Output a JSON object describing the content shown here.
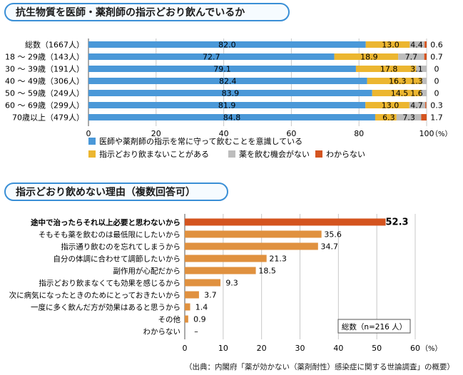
{
  "chart1": {
    "title": "抗生物質を医師・薬剤師の指示どおり飲んでいるか",
    "chart_data": {
      "type": "bar",
      "orientation": "horizontal-stacked",
      "categories": [
        "総数（1667人）",
        "18 ～ 29歳（143人）",
        "30 ～ 39歳（191人）",
        "40 ～ 49歳（306人）",
        "50 ～ 59歳（249人）",
        "60 ～ 69歳（299人）",
        "70歳以上（479人）"
      ],
      "series": [
        {
          "name": "医師や薬剤師の指示を常に守って飲むことを意識している",
          "color": "#4a98d8",
          "values": [
            82.0,
            72.7,
            79.1,
            82.4,
            83.9,
            81.9,
            84.8
          ]
        },
        {
          "name": "指示どおり飲まないことがある",
          "color": "#ecb630",
          "values": [
            13.0,
            18.9,
            17.8,
            16.3,
            14.5,
            13.0,
            6.3
          ]
        },
        {
          "name": "薬を飲む機会がない",
          "color": "#bdbdbd",
          "values": [
            4.4,
            7.7,
            3.1,
            1.3,
            1.6,
            4.7,
            7.3
          ]
        },
        {
          "name": "わからない",
          "color": "#d4541f",
          "values": [
            0.6,
            0.7,
            0,
            0,
            0,
            0.3,
            1.7
          ]
        }
      ],
      "labels": [
        [
          "82.0",
          "13.0",
          "4.4",
          "0.6"
        ],
        [
          "72.7",
          "18.9",
          "7.7",
          "0.7"
        ],
        [
          "79.1",
          "17.8",
          "3.1",
          "0"
        ],
        [
          "82.4",
          "16.3",
          "1.3",
          "0"
        ],
        [
          "83.9",
          "14.5",
          "1.6",
          "0"
        ],
        [
          "81.9",
          "13.0",
          "4.7",
          "0.3"
        ],
        [
          "84.8",
          "6.3",
          "7.3",
          "1.7"
        ]
      ],
      "xlim": [
        0,
        100
      ],
      "xticks": [
        "0",
        "20",
        "40",
        "60",
        "80",
        "100"
      ],
      "xunit": "（%）",
      "grid": true,
      "legend_position": "bottom"
    }
  },
  "chart2": {
    "title": "指示どおり飲めない理由（複数回答可）",
    "chart_data": {
      "type": "bar",
      "orientation": "horizontal",
      "categories": [
        "途中で治ったらそれ以上必要と思わないから",
        "そもそも薬を飲むのは最低限にしたいから",
        "指示通り飲むのを忘れてしまうから",
        "自分の体調に合わせて調節したいから",
        "副作用が心配だから",
        "指示どおり飲まなくても効果を感じるから",
        "次に病気になったときのためにとっておきたいから",
        "一度に多く飲んだ方が効果はあると思うから",
        "その他",
        "わからない"
      ],
      "values": [
        52.3,
        35.6,
        34.7,
        21.3,
        18.5,
        9.3,
        3.7,
        1.4,
        0.9,
        0
      ],
      "value_labels": [
        "52.3",
        "35.6",
        "34.7",
        "21.3",
        "18.5",
        "9.3",
        "3.7",
        "1.4",
        "0.9",
        "–"
      ],
      "colors": {
        "highlight": "#d4541f",
        "bar": "#e0913f"
      },
      "xlim": [
        0,
        60
      ],
      "xticks": [
        "0",
        "10",
        "20",
        "30",
        "40",
        "50",
        "60"
      ],
      "xunit": "（%）",
      "grid": true,
      "note": "総数（n=216 人）"
    }
  },
  "source": "（出典：内閣府「薬が効かない（薬剤耐性）感染症に関する世論調査」の概要）"
}
